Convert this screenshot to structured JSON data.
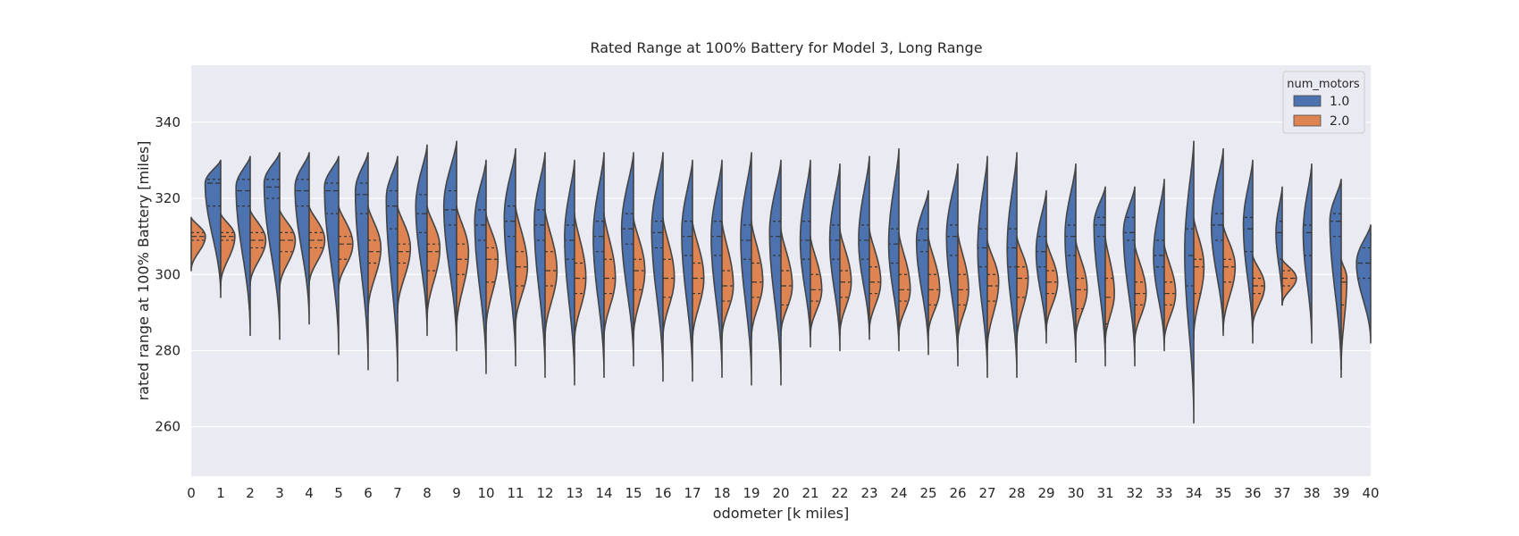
{
  "chart_data": {
    "type": "violin",
    "title": "Rated Range at 100% Battery for Model 3, Long Range",
    "xlabel": "odometer [k miles]",
    "ylabel": "rated range at 100% Battery [miles]",
    "ylim": [
      247,
      355
    ],
    "yticks": [
      260,
      280,
      300,
      320,
      340
    ],
    "grid": true,
    "split": true,
    "inner": "quartile",
    "categories": [
      "0",
      "1",
      "2",
      "3",
      "4",
      "5",
      "6",
      "7",
      "8",
      "9",
      "10",
      "11",
      "12",
      "13",
      "14",
      "15",
      "16",
      "17",
      "18",
      "19",
      "20",
      "21",
      "22",
      "23",
      "24",
      "25",
      "26",
      "27",
      "28",
      "29",
      "30",
      "31",
      "32",
      "33",
      "34",
      "35",
      "36",
      "37",
      "38",
      "39",
      "40"
    ],
    "legend": {
      "title": "num_motors",
      "placement": "top-right",
      "entries": [
        {
          "label": "1.0",
          "color": "#4c72b0"
        },
        {
          "label": "2.0",
          "color": "#dd8452"
        }
      ]
    },
    "series": [
      {
        "name": "1.0",
        "color": "#4c72b0",
        "stats": [
          null,
          {
            "min": 294,
            "q1": 318,
            "median": 324,
            "q3": 325,
            "max": 330,
            "mode": 324,
            "width": 0.55
          },
          {
            "min": 284,
            "q1": 318,
            "median": 322,
            "q3": 325,
            "max": 331,
            "mode": 323,
            "width": 0.5
          },
          {
            "min": 283,
            "q1": 320,
            "median": 323,
            "q3": 325,
            "max": 332,
            "mode": 324,
            "width": 0.55
          },
          {
            "min": 287,
            "q1": 318,
            "median": 322,
            "q3": 325,
            "max": 332,
            "mode": 323,
            "width": 0.5
          },
          {
            "min": 279,
            "q1": 316,
            "median": 322,
            "q3": 324,
            "max": 331,
            "mode": 323,
            "width": 0.5
          },
          {
            "min": 275,
            "q1": 316,
            "median": 321,
            "q3": 324,
            "max": 332,
            "mode": 322,
            "width": 0.45
          },
          {
            "min": 272,
            "q1": 312,
            "median": 318,
            "q3": 322,
            "max": 331,
            "mode": 320,
            "width": 0.4
          },
          {
            "min": 284,
            "q1": 311,
            "median": 316,
            "q3": 321,
            "max": 334,
            "mode": 318,
            "width": 0.4
          },
          {
            "min": 280,
            "q1": 313,
            "median": 317,
            "q3": 322,
            "max": 335,
            "mode": 318,
            "width": 0.45
          },
          {
            "min": 274,
            "q1": 309,
            "median": 313,
            "q3": 317,
            "max": 330,
            "mode": 314,
            "width": 0.4
          },
          {
            "min": 276,
            "q1": 310,
            "median": 314,
            "q3": 318,
            "max": 333,
            "mode": 315,
            "width": 0.4
          },
          {
            "min": 273,
            "q1": 309,
            "median": 313,
            "q3": 317,
            "max": 332,
            "mode": 314,
            "width": 0.38
          },
          {
            "min": 271,
            "q1": 304,
            "median": 309,
            "q3": 313,
            "max": 330,
            "mode": 310,
            "width": 0.35
          },
          {
            "min": 273,
            "q1": 306,
            "median": 310,
            "q3": 314,
            "max": 332,
            "mode": 310,
            "width": 0.38
          },
          {
            "min": 276,
            "q1": 308,
            "median": 312,
            "q3": 316,
            "max": 332,
            "mode": 312,
            "width": 0.42
          },
          {
            "min": 272,
            "q1": 307,
            "median": 311,
            "q3": 314,
            "max": 332,
            "mode": 312,
            "width": 0.4
          },
          {
            "min": 272,
            "q1": 305,
            "median": 310,
            "q3": 314,
            "max": 330,
            "mode": 311,
            "width": 0.38
          },
          {
            "min": 273,
            "q1": 305,
            "median": 310,
            "q3": 314,
            "max": 330,
            "mode": 310,
            "width": 0.38
          },
          {
            "min": 271,
            "q1": 304,
            "median": 309,
            "q3": 313,
            "max": 332,
            "mode": 310,
            "width": 0.38
          },
          {
            "min": 271,
            "q1": 305,
            "median": 310,
            "q3": 314,
            "max": 330,
            "mode": 311,
            "width": 0.4
          },
          {
            "min": 281,
            "q1": 304,
            "median": 309,
            "q3": 314,
            "max": 330,
            "mode": 309,
            "width": 0.36
          },
          {
            "min": 280,
            "q1": 304,
            "median": 309,
            "q3": 313,
            "max": 329,
            "mode": 309,
            "width": 0.36
          },
          {
            "min": 283,
            "q1": 304,
            "median": 309,
            "q3": 313,
            "max": 331,
            "mode": 309,
            "width": 0.38
          },
          {
            "min": 280,
            "q1": 303,
            "median": 308,
            "q3": 312,
            "max": 333,
            "mode": 308,
            "width": 0.36
          },
          {
            "min": 279,
            "q1": 306,
            "median": 309,
            "q3": 312,
            "max": 322,
            "mode": 309,
            "width": 0.42
          },
          {
            "min": 276,
            "q1": 305,
            "median": 310,
            "q3": 313,
            "max": 329,
            "mode": 310,
            "width": 0.4
          },
          {
            "min": 273,
            "q1": 302,
            "median": 307,
            "q3": 312,
            "max": 331,
            "mode": 307,
            "width": 0.34
          },
          {
            "min": 273,
            "q1": 302,
            "median": 307,
            "q3": 312,
            "max": 332,
            "mode": 307,
            "width": 0.34
          },
          {
            "min": 282,
            "q1": 302,
            "median": 306,
            "q3": 310,
            "max": 322,
            "mode": 306,
            "width": 0.36
          },
          {
            "min": 277,
            "q1": 305,
            "median": 310,
            "q3": 313,
            "max": 329,
            "mode": 310,
            "width": 0.38
          },
          {
            "min": 276,
            "q1": 310,
            "median": 313,
            "q3": 315,
            "max": 323,
            "mode": 313,
            "width": 0.4
          },
          {
            "min": 276,
            "q1": 309,
            "median": 311,
            "q3": 315,
            "max": 323,
            "mode": 311,
            "width": 0.4
          },
          {
            "min": 280,
            "q1": 302,
            "median": 305,
            "q3": 309,
            "max": 325,
            "mode": 305,
            "width": 0.38
          },
          {
            "min": 261,
            "q1": 297,
            "median": 305,
            "q3": 312,
            "max": 335,
            "mode": 306,
            "width": 0.32
          },
          {
            "min": 284,
            "q1": 309,
            "median": 313,
            "q3": 316,
            "max": 333,
            "mode": 313,
            "width": 0.42
          },
          {
            "min": 282,
            "q1": 306,
            "median": 312,
            "q3": 315,
            "max": 330,
            "mode": 313,
            "width": 0.33
          },
          {
            "min": 292,
            "q1": 304,
            "median": 311,
            "q3": 314,
            "max": 323,
            "mode": 311,
            "width": 0.22
          },
          {
            "min": 282,
            "q1": 305,
            "median": 311,
            "q3": 313,
            "max": 329,
            "mode": 311,
            "width": 0.3
          },
          {
            "min": 273,
            "q1": 310,
            "median": 314,
            "q3": 316,
            "max": 325,
            "mode": 314,
            "width": 0.4
          },
          {
            "min": 282,
            "q1": 299,
            "median": 303,
            "q3": 307,
            "max": 313,
            "mode": 303,
            "width": 0.5
          }
        ]
      },
      {
        "name": "2.0",
        "color": "#dd8452",
        "stats": [
          {
            "min": 301,
            "q1": 309,
            "median": 310,
            "q3": 311,
            "max": 315,
            "mode": 310,
            "width": 0.5
          },
          {
            "min": 297,
            "q1": 309,
            "median": 310,
            "q3": 311,
            "max": 316,
            "mode": 310,
            "width": 0.5
          },
          {
            "min": 297,
            "q1": 307,
            "median": 309,
            "q3": 311,
            "max": 317,
            "mode": 309,
            "width": 0.55
          },
          {
            "min": 296,
            "q1": 306,
            "median": 309,
            "q3": 311,
            "max": 317,
            "mode": 309,
            "width": 0.55
          },
          {
            "min": 297,
            "q1": 307,
            "median": 309,
            "q3": 311,
            "max": 318,
            "mode": 309,
            "width": 0.55
          },
          {
            "min": 296,
            "q1": 304,
            "median": 308,
            "q3": 310,
            "max": 318,
            "mode": 308,
            "width": 0.5
          },
          {
            "min": 290,
            "q1": 303,
            "median": 306,
            "q3": 309,
            "max": 318,
            "mode": 307,
            "width": 0.45
          },
          {
            "min": 290,
            "q1": 303,
            "median": 306,
            "q3": 308,
            "max": 318,
            "mode": 307,
            "width": 0.45
          },
          {
            "min": 288,
            "q1": 301,
            "median": 306,
            "q3": 308,
            "max": 318,
            "mode": 307,
            "width": 0.45
          },
          {
            "min": 285,
            "q1": 300,
            "median": 304,
            "q3": 308,
            "max": 318,
            "mode": 306,
            "width": 0.42
          },
          {
            "min": 285,
            "q1": 298,
            "median": 304,
            "q3": 307,
            "max": 316,
            "mode": 304,
            "width": 0.42
          },
          {
            "min": 286,
            "q1": 297,
            "median": 302,
            "q3": 306,
            "max": 318,
            "mode": 302,
            "width": 0.42
          },
          {
            "min": 283,
            "q1": 297,
            "median": 301,
            "q3": 306,
            "max": 317,
            "mode": 301,
            "width": 0.42
          },
          {
            "min": 282,
            "q1": 295,
            "median": 299,
            "q3": 303,
            "max": 316,
            "mode": 299,
            "width": 0.4
          },
          {
            "min": 283,
            "q1": 295,
            "median": 299,
            "q3": 304,
            "max": 316,
            "mode": 299,
            "width": 0.4
          },
          {
            "min": 283,
            "q1": 296,
            "median": 301,
            "q3": 304,
            "max": 315,
            "mode": 301,
            "width": 0.4
          },
          {
            "min": 283,
            "q1": 294,
            "median": 299,
            "q3": 304,
            "max": 315,
            "mode": 299,
            "width": 0.4
          },
          {
            "min": 282,
            "q1": 295,
            "median": 299,
            "q3": 303,
            "max": 314,
            "mode": 299,
            "width": 0.4
          },
          {
            "min": 283,
            "q1": 293,
            "median": 297,
            "q3": 301,
            "max": 314,
            "mode": 297,
            "width": 0.4
          },
          {
            "min": 283,
            "q1": 294,
            "median": 298,
            "q3": 303,
            "max": 314,
            "mode": 298,
            "width": 0.4
          },
          {
            "min": 284,
            "q1": 292,
            "median": 297,
            "q3": 301,
            "max": 312,
            "mode": 297,
            "width": 0.4
          },
          {
            "min": 284,
            "q1": 293,
            "median": 296,
            "q3": 300,
            "max": 310,
            "mode": 296,
            "width": 0.4
          },
          {
            "min": 284,
            "q1": 294,
            "median": 298,
            "q3": 301,
            "max": 312,
            "mode": 298,
            "width": 0.4
          },
          {
            "min": 285,
            "q1": 295,
            "median": 298,
            "q3": 302,
            "max": 312,
            "mode": 298,
            "width": 0.4
          },
          {
            "min": 284,
            "q1": 293,
            "median": 296,
            "q3": 300,
            "max": 311,
            "mode": 296,
            "width": 0.4
          },
          {
            "min": 284,
            "q1": 292,
            "median": 296,
            "q3": 300,
            "max": 310,
            "mode": 296,
            "width": 0.4
          },
          {
            "min": 282,
            "q1": 292,
            "median": 296,
            "q3": 300,
            "max": 311,
            "mode": 296,
            "width": 0.38
          },
          {
            "min": 280,
            "q1": 293,
            "median": 297,
            "q3": 300,
            "max": 309,
            "mode": 298,
            "width": 0.4
          },
          {
            "min": 282,
            "q1": 294,
            "median": 299,
            "q3": 302,
            "max": 310,
            "mode": 299,
            "width": 0.4
          },
          {
            "min": 285,
            "q1": 295,
            "median": 298,
            "q3": 301,
            "max": 309,
            "mode": 298,
            "width": 0.4
          },
          {
            "min": 283,
            "q1": 291,
            "median": 296,
            "q3": 299,
            "max": 309,
            "mode": 296,
            "width": 0.4
          },
          {
            "min": 282,
            "q1": 287,
            "median": 294,
            "q3": 299,
            "max": 310,
            "mode": 295,
            "width": 0.32
          },
          {
            "min": 282,
            "q1": 292,
            "median": 295,
            "q3": 298,
            "max": 308,
            "mode": 295,
            "width": 0.4
          },
          {
            "min": 282,
            "q1": 292,
            "median": 295,
            "q3": 298,
            "max": 308,
            "mode": 295,
            "width": 0.4
          },
          {
            "min": 283,
            "q1": 295,
            "median": 302,
            "q3": 304,
            "max": 315,
            "mode": 302,
            "width": 0.36
          },
          {
            "min": 285,
            "q1": 298,
            "median": 302,
            "q3": 304,
            "max": 313,
            "mode": 302,
            "width": 0.42
          },
          {
            "min": 286,
            "q1": 295,
            "median": 297,
            "q3": 299,
            "max": 305,
            "mode": 297,
            "width": 0.42
          },
          {
            "min": 292,
            "q1": 297,
            "median": 299,
            "q3": 301,
            "max": 304,
            "mode": 299,
            "width": 0.5
          },
          null,
          {
            "min": 275,
            "q1": 292,
            "median": 298,
            "q3": 299,
            "max": 304,
            "mode": 299,
            "width": 0.2
          },
          null
        ]
      }
    ]
  }
}
